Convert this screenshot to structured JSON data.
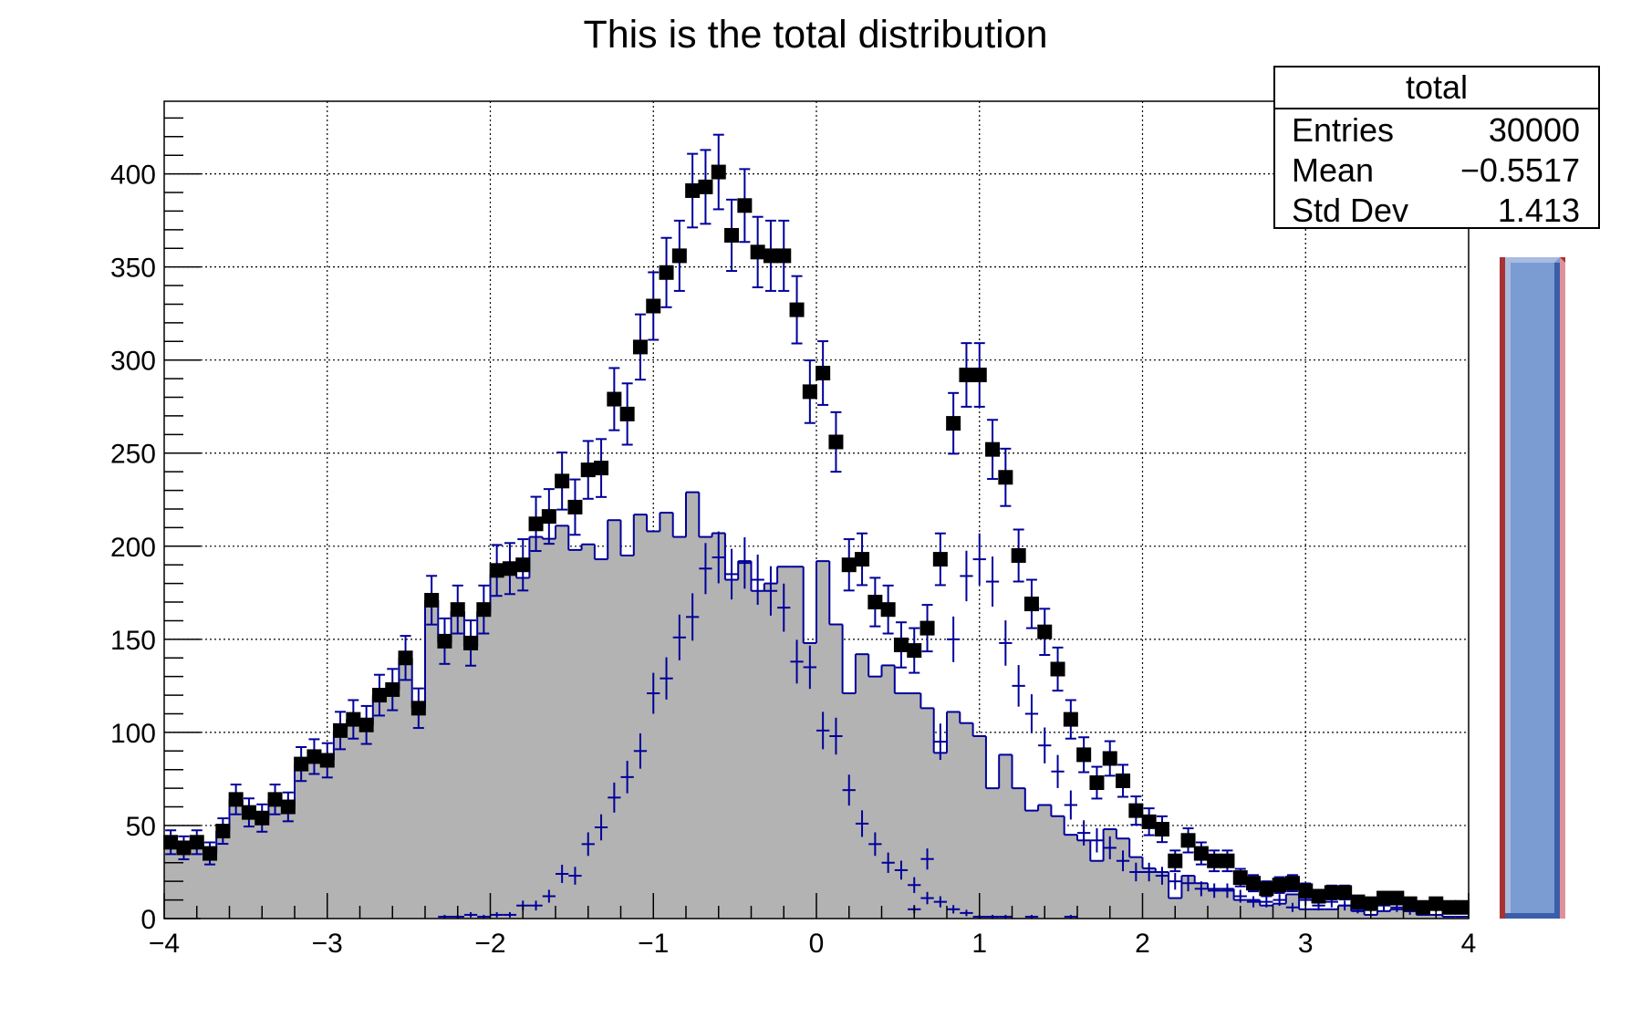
{
  "chart_data": {
    "type": "bar",
    "style": "step-histogram",
    "title": "This is the total distribution",
    "xlabel": "",
    "ylabel": "",
    "xlim": [
      -4,
      4
    ],
    "ylim": [
      0,
      439
    ],
    "bins": 100,
    "grid": true,
    "x_tick_labels": [
      "−4",
      "−3",
      "−2",
      "−1",
      "0",
      "1",
      "2",
      "3",
      "4"
    ],
    "y_tick_labels": [
      "0",
      "50",
      "100",
      "150",
      "200",
      "250",
      "300",
      "350",
      "400"
    ],
    "series": [
      {
        "role": "filled-histogram",
        "fill": "#b3b3b3",
        "line": "#00009a",
        "values": [
          41,
          38,
          41,
          35,
          47,
          64,
          57,
          54,
          64,
          60,
          83,
          87,
          85,
          101,
          107,
          104,
          120,
          123,
          140,
          113,
          171,
          148,
          165,
          146,
          165,
          185,
          186,
          183,
          205,
          204,
          211,
          198,
          201,
          193,
          214,
          195,
          217,
          208,
          218,
          205,
          229,
          205,
          207,
          182,
          192,
          176,
          180,
          189,
          189,
          148,
          192,
          158,
          121,
          142,
          130,
          136,
          121,
          121,
          113,
          89,
          111,
          105,
          98,
          70,
          88,
          70,
          58,
          61,
          55,
          45,
          42,
          31,
          48,
          43,
          33,
          27,
          25,
          11,
          23,
          19,
          16,
          16,
          10,
          10,
          7,
          8,
          13,
          5,
          5,
          5,
          7,
          4,
          2,
          4,
          5,
          4,
          2,
          2,
          1,
          1
        ]
      },
      {
        "role": "cross-markers",
        "color": "#00009a",
        "values": [
          0,
          0,
          0,
          0,
          0,
          0,
          0,
          0,
          0,
          0,
          0,
          0,
          0,
          0,
          0,
          0,
          0,
          0,
          0,
          0,
          0,
          1,
          1,
          2,
          1,
          2,
          2,
          7,
          7,
          12,
          24,
          23,
          40,
          49,
          65,
          76,
          90,
          121,
          129,
          151,
          162,
          188,
          194,
          185,
          191,
          182,
          176,
          167,
          138,
          135,
          101,
          98,
          69,
          51,
          40,
          30,
          26,
          18,
          11,
          9,
          5,
          3,
          1,
          1,
          1,
          0,
          1,
          0,
          0,
          1,
          0,
          0,
          0,
          0,
          0,
          0,
          0,
          0,
          0,
          0,
          0,
          0,
          0,
          0,
          0,
          0,
          0,
          0,
          0,
          0,
          0,
          0,
          0,
          0,
          0,
          0,
          0,
          0,
          0,
          0
        ]
      },
      {
        "role": "cross-markers",
        "color": "#00009a",
        "values": [
          0,
          0,
          0,
          0,
          0,
          0,
          0,
          0,
          0,
          0,
          0,
          0,
          0,
          0,
          0,
          0,
          0,
          0,
          0,
          0,
          0,
          0,
          0,
          0,
          0,
          0,
          0,
          0,
          0,
          0,
          0,
          0,
          0,
          0,
          0,
          0,
          0,
          0,
          0,
          0,
          0,
          0,
          0,
          0,
          0,
          0,
          0,
          0,
          0,
          0,
          0,
          0,
          0,
          0,
          0,
          0,
          0,
          5,
          32,
          95,
          150,
          184,
          193,
          181,
          148,
          125,
          110,
          93,
          79,
          61,
          46,
          42,
          38,
          31,
          25,
          25,
          23,
          20,
          19,
          16,
          15,
          15,
          12,
          9,
          9,
          10,
          6,
          10,
          7,
          9,
          7,
          5,
          6,
          7,
          6,
          4,
          4,
          6,
          5,
          5
        ]
      },
      {
        "role": "square-markers-with-errors",
        "color": "#000000",
        "error_color": "#00009a",
        "values": [
          41,
          38,
          41,
          35,
          47,
          64,
          57,
          54,
          64,
          60,
          83,
          87,
          85,
          101,
          107,
          104,
          120,
          123,
          140,
          113,
          171,
          149,
          166,
          148,
          166,
          187,
          188,
          190,
          212,
          216,
          235,
          221,
          241,
          242,
          279,
          271,
          307,
          329,
          347,
          356,
          391,
          393,
          401,
          367,
          383,
          358,
          356,
          356,
          327,
          283,
          293,
          256,
          190,
          193,
          170,
          166,
          147,
          144,
          156,
          193,
          266,
          292,
          292,
          252,
          237,
          195,
          169,
          154,
          134,
          107,
          88,
          73,
          86,
          74,
          58,
          52,
          48,
          31,
          42,
          35,
          31,
          31,
          22,
          19,
          16,
          18,
          19,
          15,
          12,
          14,
          14,
          9,
          8,
          11,
          11,
          8,
          6,
          8,
          6,
          6
        ]
      }
    ]
  },
  "stats_box": {
    "name": "total",
    "rows": [
      {
        "label": "Entries",
        "value": "30000"
      },
      {
        "label": "Mean",
        "value": "−0.5517"
      },
      {
        "label": "Std Dev",
        "value": "1.413"
      }
    ]
  },
  "palette": {
    "fill": "#7b9bd3",
    "light": "#a9bbe0",
    "dark": "#3a5ea8",
    "red": "#a83232",
    "pink": "#e0909a"
  }
}
